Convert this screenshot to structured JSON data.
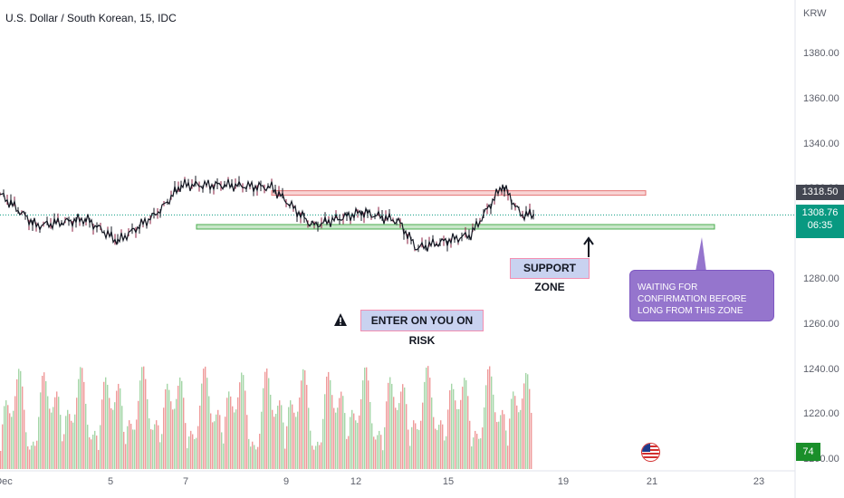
{
  "header": {
    "title": "U.S. Dollar / South Korean, 15, IDC",
    "currency": "KRW"
  },
  "price_tags": {
    "resistance": "1318.50",
    "last": "1308.76",
    "countdown": "06:35",
    "volume_badge": "74"
  },
  "annotations": {
    "support": "SUPPORT ZONE",
    "waiting": "WAITING FOR CONFIRMATION BEFORE LONG FROM THIS ZONE",
    "risk": "ENTER ON YOU ON RISK",
    "warning_icon": "warning-triangle-icon",
    "flag_icon": "us-flag-event-icon"
  },
  "colors": {
    "resistance_zone": "#ef9a9a",
    "support_zone": "#a5d6a7",
    "callout": "#9575cd",
    "last_price": "#089981",
    "volume_up": "#a5d6a7",
    "volume_down": "#ef9a9a"
  },
  "chart_data": {
    "type": "line",
    "title": "U.S. Dollar / South Korean, 15, IDC",
    "xlabel": "",
    "ylabel": "KRW",
    "x_ticks": [
      "Dec",
      "5",
      "7",
      "9",
      "12",
      "15",
      "19",
      "21",
      "23"
    ],
    "y_ticks": [
      1380,
      1360,
      1340,
      1320,
      1300,
      1280,
      1260,
      1240,
      1220,
      1200
    ],
    "y_tick_labels": [
      "1380.00",
      "1360.00",
      "1340.00",
      "1320.00",
      "1300.00",
      "1280.00",
      "1260.00",
      "1240.00",
      "1220.00",
      "1200.00"
    ],
    "ylim": [
      1195,
      1392
    ],
    "grid": false,
    "series": [
      {
        "x": [
          "Dec",
          "4",
          "5",
          "6",
          "7",
          "8",
          "9",
          "12",
          "13",
          "14",
          "15",
          "16"
        ],
        "values": [
          1318,
          1304,
          1297,
          1312,
          1322,
          1317,
          1318,
          1304,
          1305,
          1294,
          1300,
          1308.76
        ]
      }
    ],
    "resistance_zone": [
      1317.5,
      1319.5
    ],
    "support_zone": [
      1302.5,
      1304.5
    ],
    "last_price": 1308.76
  }
}
